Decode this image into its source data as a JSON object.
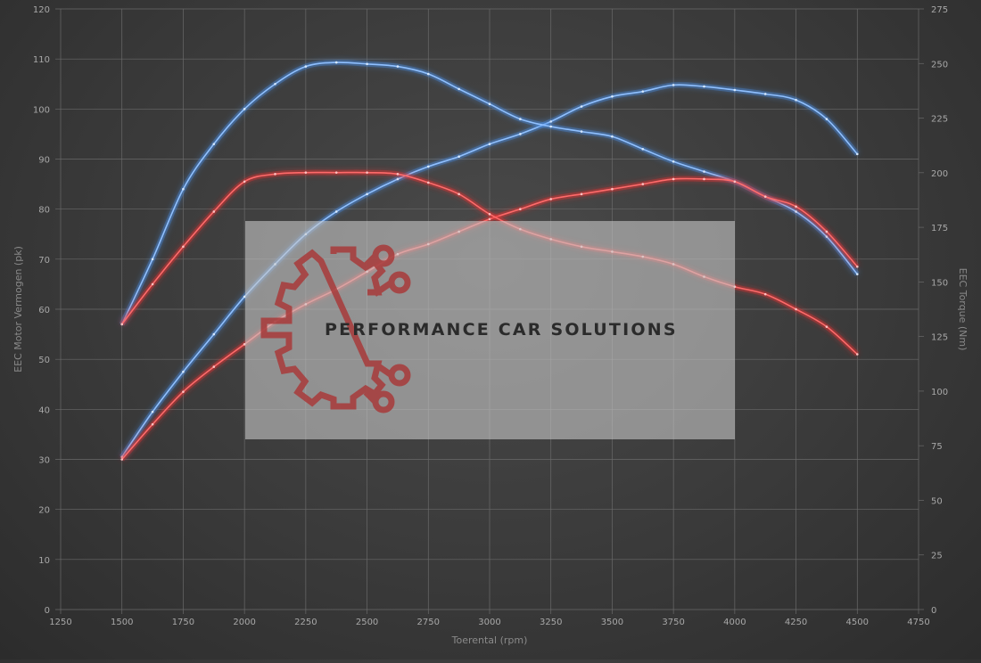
{
  "chart_data": {
    "type": "line",
    "xlabel": "Toerental (rpm)",
    "ylabel_left": "EEC Motor Vermogen (pk)",
    "ylabel_right": "EEC Torque (Nm)",
    "xlim": [
      1250,
      4750
    ],
    "ylim_left": [
      0,
      120
    ],
    "ylim_right": [
      0,
      275
    ],
    "x_ticks": [
      "1250",
      "1500",
      "1750",
      "2000",
      "2250",
      "2500",
      "2750",
      "3000",
      "3250",
      "3500",
      "3750",
      "4000",
      "4250",
      "4500",
      "4750"
    ],
    "y_left_ticks": [
      "0",
      "10",
      "20",
      "30",
      "40",
      "50",
      "60",
      "70",
      "80",
      "90",
      "100",
      "110",
      "120"
    ],
    "y_right_ticks": [
      "0",
      "25",
      "50",
      "75",
      "100",
      "125",
      "150",
      "175",
      "200",
      "225",
      "250",
      "275"
    ],
    "grid": true,
    "series": [
      {
        "color": "#4a90e8",
        "axis": "left",
        "x": [
          1500,
          1625,
          1750,
          1875,
          2000,
          2125,
          2250,
          2375,
          2500,
          2625,
          2750,
          2875,
          3000,
          3125,
          3250,
          3375,
          3500,
          3625,
          3750,
          3875,
          4000,
          4125,
          4250,
          4375,
          4500
        ],
        "values": [
          30.5,
          39.5,
          47.5,
          55,
          62.5,
          69,
          75,
          79.5,
          83,
          86,
          88.5,
          90.5,
          93,
          95,
          97.5,
          100.5,
          102.5,
          103.5,
          104.8,
          104.5,
          103.8,
          103,
          101.8,
          98,
          91
        ]
      },
      {
        "color": "#4a90e8",
        "axis": "left",
        "x": [
          1500,
          1625,
          1750,
          1875,
          2000,
          2125,
          2250,
          2375,
          2500,
          2625,
          2750,
          2875,
          3000,
          3125,
          3250,
          3375,
          3500,
          3625,
          3750,
          3875,
          4000,
          4125,
          4250,
          4375,
          4500
        ],
        "values": [
          57,
          70,
          84,
          93,
          100,
          105,
          108.5,
          109.3,
          109,
          108.5,
          107,
          104,
          101,
          98,
          96.5,
          95.5,
          94.5,
          92,
          89.5,
          87.5,
          85.5,
          82.5,
          79.5,
          74.5,
          67
        ]
      },
      {
        "color": "#e53232",
        "axis": "left",
        "x": [
          1500,
          1625,
          1750,
          1875,
          2000,
          2125,
          2250,
          2375,
          2500,
          2625,
          2750,
          2875,
          3000,
          3125,
          3250,
          3375,
          3500,
          3625,
          3750,
          3875,
          4000,
          4125,
          4250,
          4375,
          4500
        ],
        "values": [
          30,
          37,
          43.5,
          48.5,
          53,
          57.5,
          61,
          64,
          67.5,
          71,
          73,
          75.5,
          78,
          80,
          82,
          83,
          84,
          85,
          86,
          86,
          85.5,
          82.5,
          80.5,
          75.5,
          68.5
        ]
      },
      {
        "color": "#e53232",
        "axis": "left",
        "x": [
          1500,
          1625,
          1750,
          1875,
          2000,
          2125,
          2250,
          2375,
          2500,
          2625,
          2750,
          2875,
          3000,
          3125,
          3250,
          3375,
          3500,
          3625,
          3750,
          3875,
          4000,
          4125,
          4250,
          4375,
          4500
        ],
        "values": [
          57,
          65,
          72.5,
          79.5,
          85.5,
          87,
          87.3,
          87.3,
          87.3,
          87,
          85.3,
          83,
          79,
          76,
          74,
          72.5,
          71.5,
          70.5,
          69,
          66.5,
          64.5,
          63,
          60,
          56.5,
          51
        ]
      }
    ]
  },
  "watermark": {
    "text": "PERFORMANCE CAR SOLUTIONS"
  }
}
